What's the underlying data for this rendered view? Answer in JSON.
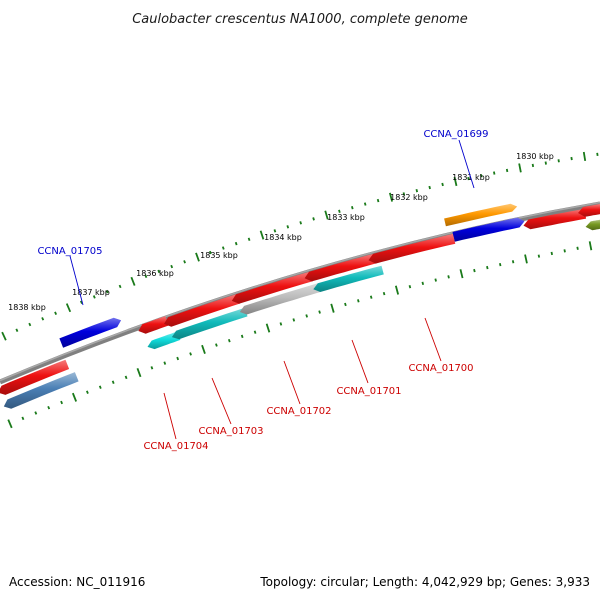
{
  "title": "Caulobacter crescentus NA1000, complete genome",
  "footer": {
    "accession": "Accession: NC_011916",
    "topology": "Topology: circular; Length: 4,042,929 bp; Genes: 3,933"
  },
  "colors": {
    "backbone": "#808080",
    "tick": "#1a7a1a",
    "label_forward": "#0000cc",
    "label_reverse": "#cc0000"
  },
  "scale": {
    "ticks": [
      {
        "label": "1838 kbp"
      },
      {
        "label": "1837 kbp"
      },
      {
        "label": "1836 kbp"
      },
      {
        "label": "1835 kbp"
      },
      {
        "label": "1834 kbp"
      },
      {
        "label": "1833 kbp"
      },
      {
        "label": "1832 kbp"
      },
      {
        "label": "1831 kbp"
      },
      {
        "label": "1830 kbp"
      }
    ]
  },
  "genes": [
    {
      "name": "left-blue-strip",
      "color": "#4a7fb5",
      "strand": "reverse",
      "label": ""
    },
    {
      "name": "left-red-strip",
      "color": "#ee1111",
      "strand": "reverse",
      "label": ""
    },
    {
      "name": "blue-forward-left",
      "color": "#0000dd",
      "strand": "forward",
      "label": "CCNA_01705"
    },
    {
      "name": "red-small-reverse",
      "color": "#ee1111",
      "strand": "reverse",
      "label": ""
    },
    {
      "name": "cyan-reverse-1",
      "color": "#11dddd",
      "strand": "reverse",
      "label": "CCNA_01704"
    },
    {
      "name": "red-reverse-1",
      "color": "#ee1111",
      "strand": "reverse",
      "label": ""
    },
    {
      "name": "teal-reverse-2",
      "color": "#11bbbb",
      "strand": "reverse",
      "label": "CCNA_01703"
    },
    {
      "name": "red-reverse-2",
      "color": "#ee1111",
      "strand": "reverse",
      "label": ""
    },
    {
      "name": "grey-reverse",
      "color": "#bbbbbb",
      "strand": "reverse",
      "label": "CCNA_01702"
    },
    {
      "name": "red-reverse-3",
      "color": "#ee1111",
      "strand": "reverse",
      "label": ""
    },
    {
      "name": "teal-reverse-3",
      "color": "#11bbbb",
      "strand": "reverse",
      "label": "CCNA_01701"
    },
    {
      "name": "red-reverse-4",
      "color": "#ee1111",
      "strand": "reverse",
      "label": "CCNA_01700"
    },
    {
      "name": "orange-forward",
      "color": "#ff9900",
      "strand": "forward",
      "label": ""
    },
    {
      "name": "blue-forward-right",
      "color": "#0000dd",
      "strand": "forward",
      "label": "CCNA_01699"
    },
    {
      "name": "red-reverse-right",
      "color": "#ee1111",
      "strand": "reverse",
      "label": ""
    },
    {
      "name": "red-reverse-edge",
      "color": "#ee1111",
      "strand": "reverse",
      "label": ""
    },
    {
      "name": "olive-edge",
      "color": "#779922",
      "strand": "reverse",
      "label": ""
    }
  ]
}
